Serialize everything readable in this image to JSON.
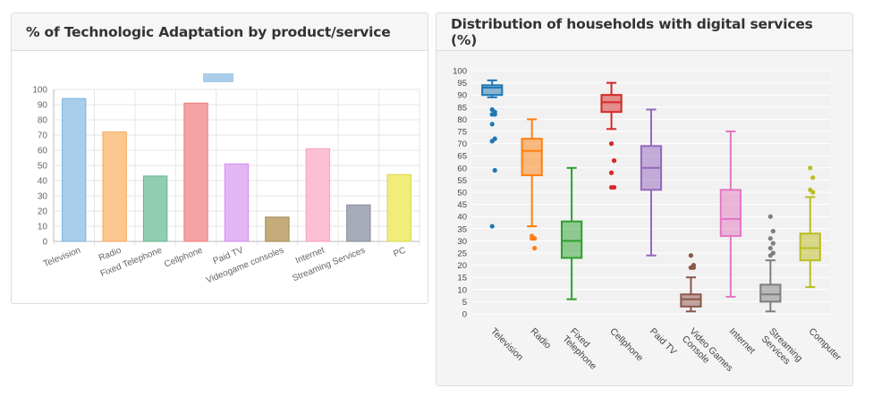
{
  "left_panel": {
    "title": "% of Technologic Adaptation by product/service",
    "chart_data": {
      "type": "bar",
      "categories": [
        "Television",
        "Radio",
        "Fixed Telephone",
        "Cellphone",
        "Paid TV",
        "Videogame consoles",
        "Internet",
        "Streaming Services",
        "PC"
      ],
      "values": [
        94,
        72,
        43,
        91,
        51,
        16,
        61,
        24,
        44
      ],
      "colors": [
        "#a9cdea",
        "#fbc78f",
        "#91cdb0",
        "#f5a3a3",
        "#e3b5f5",
        "#c3ab7a",
        "#fcc0d5",
        "#a7abb8",
        "#f0ed7a"
      ],
      "borders": [
        "#7fb3dd",
        "#f7a95c",
        "#62b58b",
        "#ee7f7f",
        "#d28ef0",
        "#a38a56",
        "#f79ebf",
        "#868b9b",
        "#d9d552"
      ],
      "ylim": [
        0,
        100
      ],
      "yticks": [
        0,
        10,
        20,
        30,
        40,
        50,
        60,
        70,
        80,
        90,
        100
      ],
      "legend_color": "#a9cdea",
      "grid": true
    }
  },
  "right_panel": {
    "title": "Distribution of households with digital services (%)",
    "chart_data": {
      "type": "box",
      "categories": [
        [
          "Television"
        ],
        [
          "Radio"
        ],
        [
          "Fixed",
          "Telephone"
        ],
        [
          "Cellphone"
        ],
        [
          "Paid TV"
        ],
        [
          "Video Games",
          "Console"
        ],
        [
          "Internet"
        ],
        [
          "Streaming",
          "Services"
        ],
        [
          "Computer"
        ]
      ],
      "colors": [
        "#1f77b4",
        "#ff7f0e",
        "#2ca02c",
        "#d62728",
        "#9467bd",
        "#8c564b",
        "#e377c2",
        "#7f7f7f",
        "#bcbd22"
      ],
      "boxes": [
        {
          "min": 89,
          "q1": 90,
          "median": 93,
          "q3": 94,
          "max": 96,
          "outliers": [
            84,
            83,
            82,
            82,
            78,
            72,
            71,
            59,
            36
          ]
        },
        {
          "min": 36,
          "q1": 57,
          "median": 67,
          "q3": 72,
          "max": 80,
          "outliers": [
            32,
            31,
            31,
            27
          ]
        },
        {
          "min": 6,
          "q1": 23,
          "median": 30,
          "q3": 38,
          "max": 60,
          "outliers": []
        },
        {
          "min": 76,
          "q1": 83,
          "median": 87,
          "q3": 90,
          "max": 95,
          "outliers": [
            70,
            63,
            58,
            52,
            52
          ]
        },
        {
          "min": 24,
          "q1": 51,
          "median": 60,
          "q3": 69,
          "max": 84,
          "outliers": []
        },
        {
          "min": 1,
          "q1": 3,
          "median": 6,
          "q3": 8,
          "max": 15,
          "outliers": [
            24,
            20,
            19,
            19,
            19
          ]
        },
        {
          "min": 7,
          "q1": 32,
          "median": 39,
          "q3": 51,
          "max": 75,
          "outliers": []
        },
        {
          "min": 1,
          "q1": 5,
          "median": 8,
          "q3": 12,
          "max": 22,
          "outliers": [
            40,
            34,
            31,
            29,
            27,
            25,
            24
          ]
        },
        {
          "min": 11,
          "q1": 22,
          "median": 27,
          "q3": 33,
          "max": 48,
          "outliers": [
            60,
            56,
            51,
            50
          ]
        }
      ],
      "ylim": [
        0,
        100
      ],
      "yticks": [
        0,
        5,
        10,
        15,
        20,
        25,
        30,
        35,
        40,
        45,
        50,
        55,
        60,
        65,
        70,
        75,
        80,
        85,
        90,
        95,
        100
      ],
      "grid": true
    }
  }
}
